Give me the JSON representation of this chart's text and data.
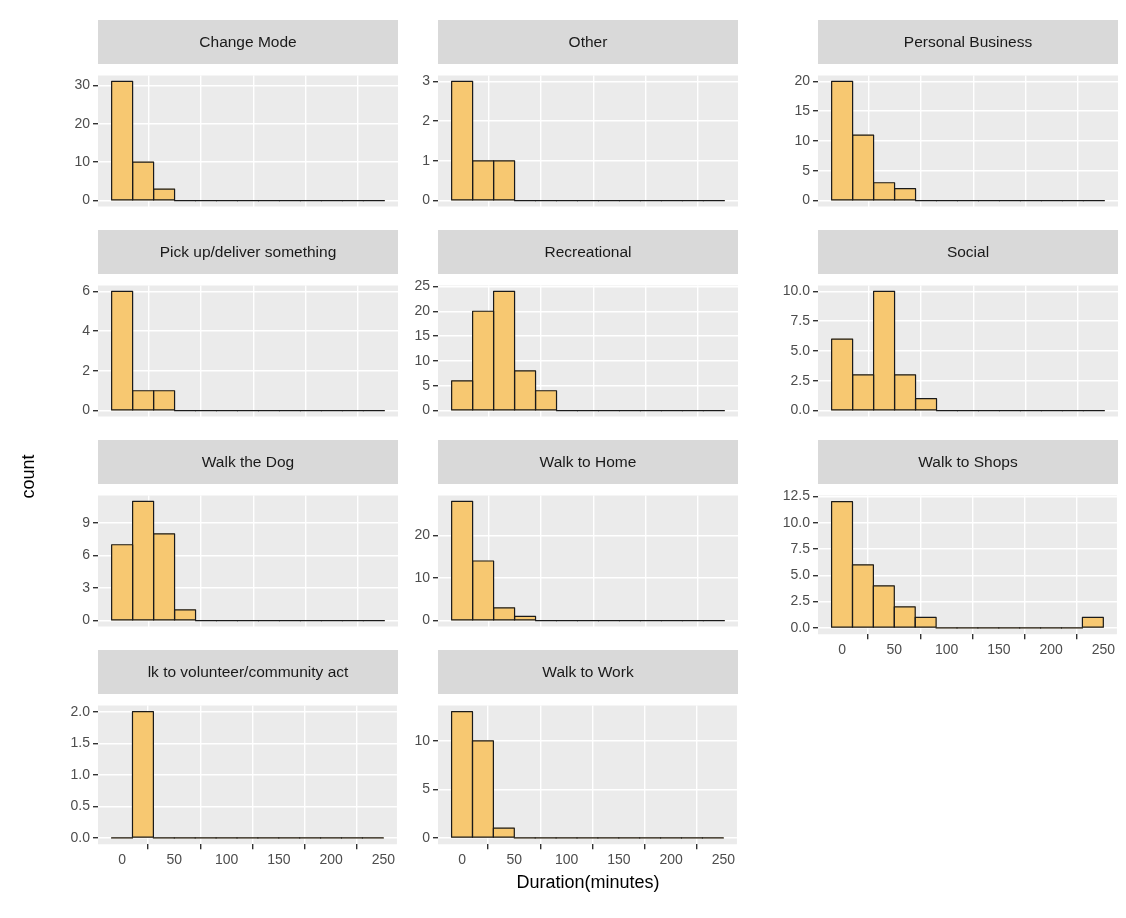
{
  "chart_data": [
    {
      "type": "histogram",
      "title": "Change Mode",
      "bins": [
        -10,
        10,
        30,
        50,
        70,
        90,
        110,
        130,
        150,
        170,
        190,
        210,
        230,
        250
      ],
      "values": [
        31,
        10,
        3,
        0,
        0,
        0,
        0,
        0,
        0,
        0,
        0,
        0,
        0
      ],
      "color": "#f7c871",
      "xlim": [
        -23,
        263
      ],
      "xticks": [
        0,
        50,
        100,
        150,
        200,
        250
      ],
      "ylim": [
        -1.55,
        32.55
      ],
      "yticks": [
        0,
        10,
        20,
        30
      ],
      "grid": true,
      "tick_labels": "y"
    },
    {
      "type": "histogram",
      "title": "Other",
      "bins": [
        -10,
        10,
        30,
        50,
        70,
        90,
        110,
        130,
        150,
        170,
        190,
        210,
        230,
        250
      ],
      "values": [
        3,
        1,
        1,
        0,
        0,
        0,
        0,
        0,
        0,
        0,
        0,
        0,
        0
      ],
      "color": "#f7c871",
      "xlim": [
        -23,
        263
      ],
      "xticks": [
        0,
        50,
        100,
        150,
        200,
        250
      ],
      "ylim": [
        -0.15,
        3.15
      ],
      "yticks": [
        0,
        1,
        2,
        3
      ],
      "grid": true,
      "tick_labels": "y"
    },
    {
      "type": "histogram",
      "title": "Personal Business",
      "bins": [
        -10,
        10,
        30,
        50,
        70,
        90,
        110,
        130,
        150,
        170,
        190,
        210,
        230,
        250
      ],
      "values": [
        20,
        11,
        3,
        2,
        0,
        0,
        0,
        0,
        0,
        0,
        0,
        0,
        0
      ],
      "color": "#f7c871",
      "xlim": [
        -23,
        263
      ],
      "xticks": [
        0,
        50,
        100,
        150,
        200,
        250
      ],
      "ylim": [
        -1,
        21
      ],
      "yticks": [
        0,
        5,
        10,
        15,
        20
      ],
      "grid": true,
      "tick_labels": "y"
    },
    {
      "type": "histogram",
      "title": "Pick up/deliver something",
      "bins": [
        -10,
        10,
        30,
        50,
        70,
        90,
        110,
        130,
        150,
        170,
        190,
        210,
        230,
        250
      ],
      "values": [
        6,
        1,
        1,
        0,
        0,
        0,
        0,
        0,
        0,
        0,
        0,
        0,
        0
      ],
      "color": "#f7c871",
      "xlim": [
        -23,
        263
      ],
      "xticks": [
        0,
        50,
        100,
        150,
        200,
        250
      ],
      "ylim": [
        -0.3,
        6.3
      ],
      "yticks": [
        0,
        2,
        4,
        6
      ],
      "grid": true,
      "tick_labels": "y"
    },
    {
      "type": "histogram",
      "title": "Recreational",
      "bins": [
        -10,
        10,
        30,
        50,
        70,
        90,
        110,
        130,
        150,
        170,
        190,
        210,
        230,
        250
      ],
      "values": [
        6,
        20,
        24,
        8,
        4,
        0,
        0,
        0,
        0,
        0,
        0,
        0,
        0
      ],
      "color": "#f7c871",
      "xlim": [
        -23,
        263
      ],
      "xticks": [
        0,
        50,
        100,
        150,
        200,
        250
      ],
      "ylim": [
        -1.2,
        25.2
      ],
      "yticks": [
        0,
        5,
        10,
        15,
        20,
        25
      ],
      "grid": true,
      "tick_labels": "y"
    },
    {
      "type": "histogram",
      "title": "Social",
      "bins": [
        -10,
        10,
        30,
        50,
        70,
        90,
        110,
        130,
        150,
        170,
        190,
        210,
        230,
        250
      ],
      "values": [
        6,
        3,
        10,
        3,
        1,
        0,
        0,
        0,
        0,
        0,
        0,
        0,
        0
      ],
      "color": "#f7c871",
      "xlim": [
        -23,
        263
      ],
      "xticks": [
        0,
        50,
        100,
        150,
        200,
        250
      ],
      "ylim": [
        -0.5,
        10.5
      ],
      "yticks": [
        {
          "value": 0,
          "label": "0.0"
        },
        {
          "value": 2.5,
          "label": "2.5"
        },
        {
          "value": 5,
          "label": "5.0"
        },
        {
          "value": 7.5,
          "label": "7.5"
        },
        {
          "value": 10,
          "label": "10.0"
        }
      ],
      "grid": true,
      "tick_labels": "y"
    },
    {
      "type": "histogram",
      "title": "Walk the Dog",
      "ylabel": "count",
      "bins": [
        -10,
        10,
        30,
        50,
        70,
        90,
        110,
        130,
        150,
        170,
        190,
        210,
        230,
        250
      ],
      "values": [
        7,
        11,
        8,
        1,
        0,
        0,
        0,
        0,
        0,
        0,
        0,
        0,
        0
      ],
      "color": "#f7c871",
      "xlim": [
        -23,
        263
      ],
      "xticks": [
        0,
        50,
        100,
        150,
        200,
        250
      ],
      "ylim": [
        -0.55,
        11.55
      ],
      "yticks": [
        0,
        3,
        6,
        9
      ],
      "grid": true,
      "tick_labels": "y"
    },
    {
      "type": "histogram",
      "title": "Walk to Home",
      "bins": [
        -10,
        10,
        30,
        50,
        70,
        90,
        110,
        130,
        150,
        170,
        190,
        210,
        230,
        250
      ],
      "values": [
        28,
        14,
        3,
        1,
        0,
        0,
        0,
        0,
        0,
        0,
        0,
        0,
        0
      ],
      "color": "#f7c871",
      "xlim": [
        -23,
        263
      ],
      "xticks": [
        0,
        50,
        100,
        150,
        200,
        250
      ],
      "ylim": [
        -1.4,
        29.4
      ],
      "yticks": [
        0,
        10,
        20
      ],
      "grid": true,
      "tick_labels": "y"
    },
    {
      "type": "histogram",
      "title": "Walk to Shops",
      "bins": [
        -10,
        10,
        30,
        50,
        70,
        90,
        110,
        130,
        150,
        170,
        190,
        210,
        230,
        250
      ],
      "values": [
        12,
        6,
        4,
        2,
        1,
        0,
        0,
        0,
        0,
        0,
        0,
        0,
        1
      ],
      "color": "#f7c871",
      "xlim": [
        -23,
        263
      ],
      "xticks": [
        0,
        50,
        100,
        150,
        200,
        250
      ],
      "ylim": [
        -0.6,
        12.6
      ],
      "yticks": [
        {
          "value": 0,
          "label": "0.0"
        },
        {
          "value": 2.5,
          "label": "2.5"
        },
        {
          "value": 5,
          "label": "5.0"
        },
        {
          "value": 7.5,
          "label": "7.5"
        },
        {
          "value": 10,
          "label": "10.0"
        },
        {
          "value": 12.5,
          "label": "12.5"
        }
      ],
      "grid": true
    },
    {
      "type": "histogram",
      "title": "lk to volunteer/community act",
      "bins": [
        -10,
        10,
        30,
        50,
        70,
        90,
        110,
        130,
        150,
        170,
        190,
        210,
        230,
        250
      ],
      "values": [
        0,
        2,
        0,
        0,
        0,
        0,
        0,
        0,
        0,
        0,
        0,
        0,
        0
      ],
      "color": "#f7c871",
      "xlim": [
        -23,
        263
      ],
      "xticks": [
        0,
        50,
        100,
        150,
        200,
        250
      ],
      "ylim": [
        -0.1,
        2.1
      ],
      "yticks": [
        {
          "value": 0,
          "label": "0.0"
        },
        {
          "value": 0.5,
          "label": "0.5"
        },
        {
          "value": 1,
          "label": "1.0"
        },
        {
          "value": 1.5,
          "label": "1.5"
        },
        {
          "value": 2,
          "label": "2.0"
        }
      ],
      "grid": true
    },
    {
      "type": "histogram",
      "title": "Walk to Work",
      "xlabel": "Duration(minutes)",
      "bins": [
        -10,
        10,
        30,
        50,
        70,
        90,
        110,
        130,
        150,
        170,
        190,
        210,
        230,
        250
      ],
      "values": [
        13,
        10,
        1,
        0,
        0,
        0,
        0,
        0,
        0,
        0,
        0,
        0,
        0
      ],
      "color": "#f7c871",
      "xlim": [
        -23,
        263
      ],
      "xticks": [
        0,
        50,
        100,
        150,
        200,
        250
      ],
      "ylim": [
        -0.65,
        13.65
      ],
      "yticks": [
        0,
        5,
        10
      ],
      "grid": true
    }
  ]
}
